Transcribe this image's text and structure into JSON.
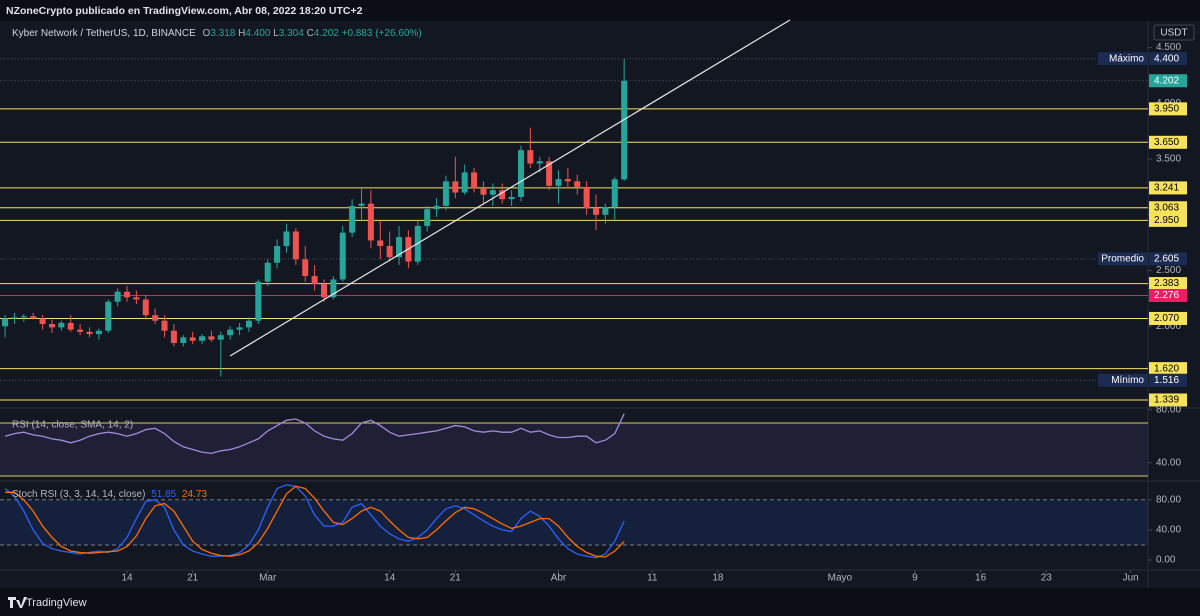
{
  "header": {
    "publisher": "NZoneCrypto publicado en TradingView.com, Abr 08, 2022 18:20 UTC+2"
  },
  "footer": {
    "brand": "TradingView"
  },
  "chart_data": [
    {
      "type": "candlestick",
      "title": "Kyber Network / TetherUS, 1D, BINANCE",
      "unit": "USDT",
      "x": [
        32,
        33,
        34,
        35,
        36,
        37,
        38,
        39,
        40,
        41,
        42,
        43,
        44,
        45,
        46,
        47,
        48,
        49,
        50,
        51,
        52,
        53,
        54,
        55,
        56,
        57,
        58,
        59,
        60,
        61,
        62,
        63,
        64,
        65,
        66,
        67,
        68,
        69,
        70,
        71,
        72,
        73,
        74,
        75,
        76,
        77,
        78,
        79,
        80,
        81,
        82,
        83,
        84,
        85,
        86,
        87,
        88,
        89,
        90,
        91,
        92,
        93,
        94,
        95,
        96,
        97,
        98
      ],
      "open": [
        2.0,
        2.07,
        2.08,
        2.09,
        2.07,
        2.02,
        1.99,
        2.03,
        1.97,
        1.95,
        1.93,
        1.96,
        2.22,
        2.31,
        2.26,
        2.24,
        2.1,
        2.05,
        1.96,
        1.85,
        1.9,
        1.87,
        1.91,
        1.88,
        1.92,
        1.97,
        1.99,
        2.05,
        2.4,
        2.57,
        2.72,
        2.85,
        2.6,
        2.45,
        2.38,
        2.26,
        2.42,
        2.84,
        3.08,
        3.1,
        2.77,
        2.72,
        2.62,
        2.8,
        2.58,
        2.9,
        3.05,
        3.08,
        3.3,
        3.2,
        3.38,
        3.24,
        3.18,
        3.22,
        3.14,
        3.16,
        3.58,
        3.46,
        3.48,
        3.26,
        3.32,
        3.3,
        3.25,
        3.06,
        3.0,
        3.07,
        3.318
      ],
      "high": [
        2.1,
        2.12,
        2.11,
        2.12,
        2.1,
        2.06,
        2.05,
        2.1,
        2.02,
        1.99,
        1.98,
        2.24,
        2.34,
        2.36,
        2.32,
        2.28,
        2.16,
        2.1,
        2.02,
        1.92,
        1.95,
        1.93,
        1.96,
        1.95,
        2.0,
        2.03,
        2.08,
        2.42,
        2.6,
        2.78,
        2.92,
        2.88,
        2.72,
        2.55,
        2.42,
        2.45,
        2.9,
        3.14,
        3.25,
        3.22,
        2.95,
        2.85,
        2.9,
        2.86,
        2.95,
        3.08,
        3.15,
        3.35,
        3.52,
        3.45,
        3.42,
        3.3,
        3.28,
        3.28,
        3.22,
        3.62,
        3.78,
        3.52,
        3.52,
        3.4,
        3.42,
        3.36,
        3.3,
        3.18,
        3.1,
        3.34,
        4.4
      ],
      "low": [
        1.9,
        2.02,
        2.04,
        2.06,
        1.97,
        1.94,
        1.96,
        1.95,
        1.92,
        1.9,
        1.88,
        1.94,
        2.18,
        2.22,
        2.2,
        2.06,
        2.02,
        1.9,
        1.82,
        1.82,
        1.84,
        1.84,
        1.86,
        1.55,
        1.88,
        1.92,
        1.95,
        2.02,
        2.36,
        2.52,
        2.66,
        2.55,
        2.4,
        2.32,
        2.22,
        2.24,
        2.4,
        2.8,
        2.94,
        2.7,
        2.6,
        2.58,
        2.55,
        2.52,
        2.55,
        2.85,
        2.98,
        3.04,
        3.15,
        3.18,
        3.2,
        3.1,
        3.08,
        3.1,
        3.08,
        3.12,
        3.42,
        3.38,
        3.22,
        3.1,
        3.24,
        3.18,
        3.0,
        2.86,
        2.92,
        2.94,
        3.304
      ],
      "close": [
        2.07,
        2.08,
        2.09,
        2.07,
        2.02,
        1.99,
        2.03,
        1.97,
        1.95,
        1.93,
        1.96,
        2.22,
        2.31,
        2.26,
        2.24,
        2.1,
        2.05,
        1.96,
        1.85,
        1.9,
        1.87,
        1.91,
        1.88,
        1.92,
        1.97,
        1.99,
        2.05,
        2.4,
        2.57,
        2.72,
        2.85,
        2.6,
        2.45,
        2.38,
        2.26,
        2.42,
        2.84,
        3.08,
        3.1,
        2.77,
        2.72,
        2.62,
        2.8,
        2.58,
        2.9,
        3.05,
        3.08,
        3.3,
        3.2,
        3.38,
        3.24,
        3.18,
        3.22,
        3.14,
        3.16,
        3.58,
        3.46,
        3.48,
        3.26,
        3.32,
        3.3,
        3.25,
        3.06,
        3.0,
        3.07,
        3.318,
        4.202
      ],
      "up_color": "#26a69a",
      "down_color": "#ef5350",
      "last": {
        "labels": [
          "O",
          "H",
          "L",
          "C"
        ],
        "value_labels": [
          "3.318",
          "4.400",
          "3.304",
          "4.202"
        ],
        "change": "+0.883 (+26.60%)"
      },
      "xlim": [
        31.46,
        154.06
      ],
      "xticks": [
        {
          "value": 45,
          "label": "14"
        },
        {
          "value": 52,
          "label": "21"
        },
        {
          "value": 60,
          "label": "Mar"
        },
        {
          "value": 73,
          "label": "14"
        },
        {
          "value": 80,
          "label": "21"
        },
        {
          "value": 91,
          "label": "Abr"
        },
        {
          "value": 101,
          "label": "11"
        },
        {
          "value": 108,
          "label": "18"
        },
        {
          "value": 121,
          "label": "Mayo"
        },
        {
          "value": 129,
          "label": "9"
        },
        {
          "value": 136,
          "label": "16"
        },
        {
          "value": 143,
          "label": "23"
        },
        {
          "value": 152,
          "label": "Jun"
        }
      ],
      "ylim": [
        1.267,
        4.747
      ],
      "yticks": [
        {
          "value": 4.5,
          "label": "4.500"
        },
        {
          "value": 4,
          "label": "4.000"
        },
        {
          "value": 3.5,
          "label": "3.500"
        },
        {
          "value": 3,
          "label": "3.000"
        },
        {
          "value": 2.5,
          "label": "2.500"
        },
        {
          "value": 2,
          "label": "2.000"
        }
      ],
      "levels": [
        {
          "value": 3.95,
          "label": "3.950",
          "color": "#f7e35a"
        },
        {
          "value": 3.65,
          "label": "3.650",
          "color": "#f7e35a"
        },
        {
          "value": 3.241,
          "label": "3.241",
          "color": "#f7e35a"
        },
        {
          "value": 3.063,
          "label": "3.063",
          "color": "#f7e35a"
        },
        {
          "value": 2.95,
          "label": "2.950",
          "color": "#f7e35a"
        },
        {
          "value": 2.383,
          "label": "2.383",
          "color": "#f7e35a"
        },
        {
          "value": 2.276,
          "label": "2.276",
          "color": "#e91e63"
        },
        {
          "value": 2.07,
          "label": "2.070",
          "color": "#f7e35a"
        },
        {
          "value": 1.62,
          "label": "1.620",
          "color": "#f7e35a"
        },
        {
          "value": 1.339,
          "label": "1.339",
          "color": "#f7e35a"
        }
      ],
      "markers": [
        {
          "name": "Máximo",
          "value": 4.4,
          "label": "4.400",
          "color": "#1c2b52"
        },
        {
          "value": 4.202,
          "label": "4.202",
          "color": "#26a69a"
        },
        {
          "name": "Promedio",
          "value": 2.605,
          "label": "2.605",
          "color": "#1c2b52"
        },
        {
          "name": "Mínimo",
          "value": 1.516,
          "label": "1.516",
          "color": "#1c2b52"
        }
      ]
    },
    {
      "type": "line",
      "title": "RSI (14, close, SMA, 14, 2)",
      "series": [
        {
          "color": "#a38bdc",
          "values": [
            60,
            62,
            63,
            61,
            60,
            58,
            57,
            55,
            57,
            60,
            62,
            63,
            62,
            60,
            62,
            65,
            66,
            62,
            56,
            52,
            50,
            48,
            47,
            49,
            50,
            52,
            55,
            58,
            64,
            68,
            72,
            73,
            70,
            64,
            60,
            58,
            57,
            62,
            70,
            72,
            68,
            63,
            60,
            61,
            62,
            63,
            64,
            66,
            68,
            67,
            64,
            63,
            64,
            63,
            63,
            66,
            63,
            64,
            61,
            59,
            59,
            60,
            60,
            55,
            57,
            62,
            77
          ]
        }
      ],
      "ylim": [
        26.2,
        81.3
      ],
      "yticks": [
        {
          "value": 80,
          "label": "80.00"
        },
        {
          "value": 40,
          "label": "40.00"
        }
      ],
      "bands": [
        70,
        30
      ],
      "band_color": "#7e57c2"
    },
    {
      "type": "line",
      "title": "Stoch RSI (3, 3, 14, 14, close)",
      "series": [
        {
          "color": "#2962ff",
          "values": [
            95,
            85,
            65,
            40,
            22,
            15,
            12,
            10,
            8,
            10,
            12,
            10,
            15,
            30,
            55,
            78,
            80,
            70,
            40,
            20,
            12,
            8,
            5,
            5,
            6,
            10,
            20,
            40,
            70,
            95,
            100,
            98,
            85,
            60,
            45,
            45,
            50,
            70,
            75,
            60,
            45,
            35,
            28,
            25,
            30,
            40,
            55,
            68,
            72,
            68,
            60,
            52,
            45,
            40,
            38,
            55,
            65,
            58,
            45,
            28,
            15,
            8,
            5,
            3,
            8,
            25,
            51.85
          ]
        },
        {
          "color": "#ff6d00",
          "values": [
            90,
            90,
            80,
            65,
            45,
            30,
            18,
            12,
            10,
            9,
            10,
            11,
            12,
            18,
            32,
            55,
            72,
            75,
            65,
            45,
            25,
            14,
            9,
            6,
            5,
            7,
            12,
            23,
            42,
            65,
            88,
            98,
            95,
            82,
            65,
            50,
            47,
            55,
            65,
            70,
            65,
            52,
            40,
            30,
            28,
            30,
            40,
            52,
            63,
            70,
            68,
            62,
            55,
            48,
            42,
            45,
            50,
            55,
            55,
            45,
            30,
            18,
            10,
            5,
            4,
            12,
            24.73
          ]
        }
      ],
      "ylim": [
        -13.3,
        105
      ],
      "yticks": [
        {
          "value": 80,
          "label": "80.00"
        },
        {
          "value": 40,
          "label": "40.00"
        },
        {
          "value": 0,
          "label": "0.00"
        }
      ],
      "bands": [
        80,
        20
      ],
      "band_color": "#2962ff"
    }
  ]
}
